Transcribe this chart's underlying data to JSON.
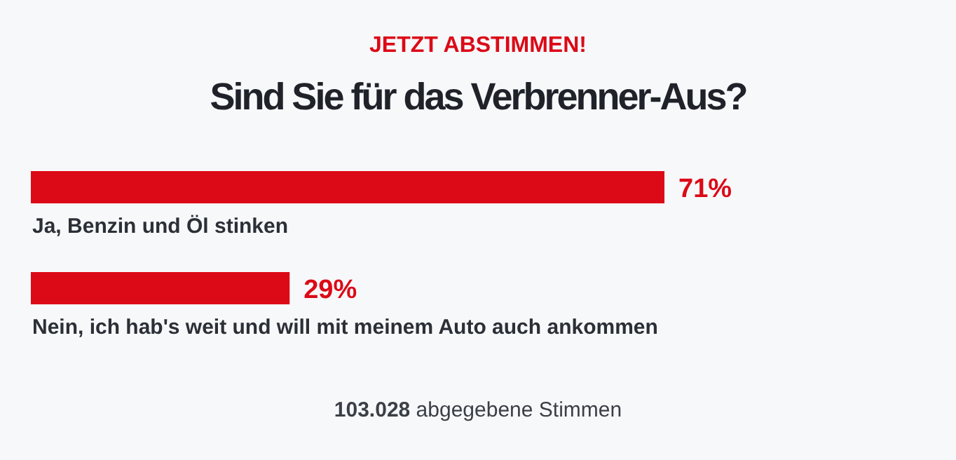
{
  "chart_data": {
    "type": "bar",
    "orientation": "horizontal",
    "subtitle": "JETZT ABSTIMMEN!",
    "title": "Sind Sie für das Verbrenner-Aus?",
    "categories": [
      "Ja, Benzin und Öl stinken",
      "Nein, ich hab's weit und will mit meinem Auto auch ankommen"
    ],
    "values": [
      71,
      29
    ],
    "color": "#dc0a17",
    "value_labels": [
      "71%",
      "29%"
    ],
    "annotations": [
      "103.028 abgegebene Stimmen"
    ]
  }
}
